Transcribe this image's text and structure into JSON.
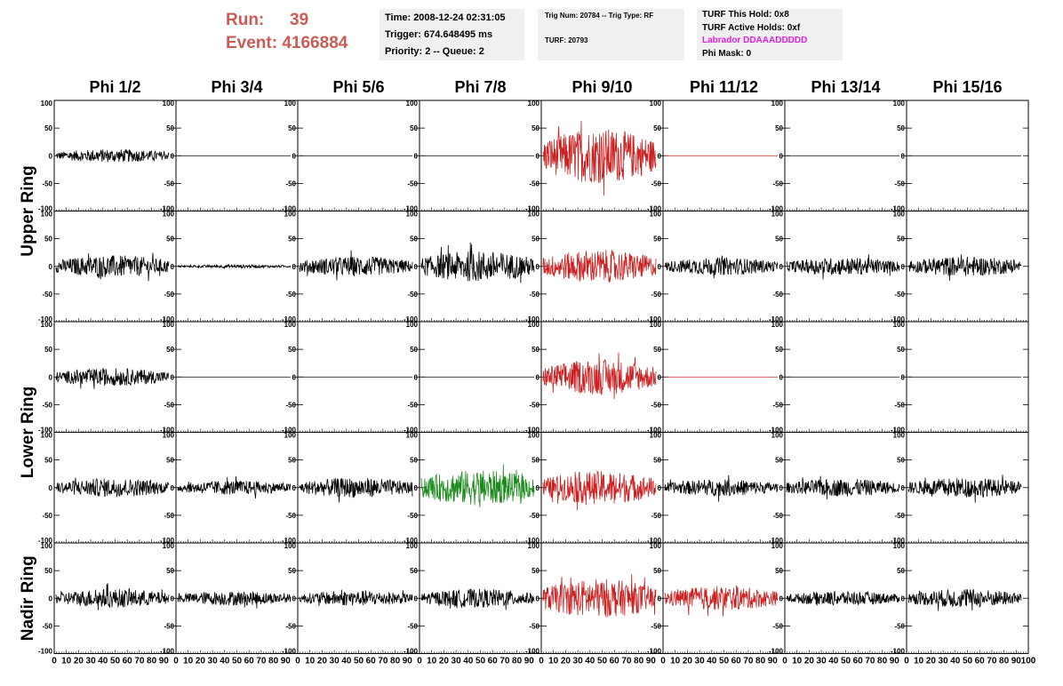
{
  "header": {
    "run_label": "Run:",
    "run_value": "39",
    "event_label": "Event:",
    "event_value": "4166884",
    "time": "Time: 2008-12-24 02:31:05",
    "trigger": "Trigger: 674.648495 ms",
    "priority": "Priority: 2 -- Queue: 2",
    "trig_num": "Trig Num: 20784 -- Trig Type: RF",
    "turf": "TURF: 20793",
    "turf_hold": "TURF This Hold: 0x8",
    "turf_active": "TURF Active Holds: 0xf",
    "labrador": "Labrador DDAAADDDDD",
    "phi_mask": "Phi Mask: 0"
  },
  "colors": {
    "header_red": "#cc5a55",
    "labrador_magenta": "#e020e0",
    "black": "#000000",
    "red": "#cc2020",
    "green": "#1a8a1a",
    "info_bg": "#f0f0f0"
  },
  "chart_data": {
    "type": "line",
    "columns": [
      "Phi 1/2",
      "Phi 3/4",
      "Phi 5/6",
      "Phi 7/8",
      "Phi 9/10",
      "Phi 11/12",
      "Phi 13/14",
      "Phi 15/16"
    ],
    "row_labels": [
      "Upper Ring",
      "Lower Ring",
      "Nadir Ring"
    ],
    "xlim": [
      0,
      100
    ],
    "ylim": [
      -100,
      100
    ],
    "xticks": [
      0,
      10,
      20,
      30,
      40,
      50,
      60,
      70,
      80,
      90,
      100
    ],
    "yticks": [
      -100,
      -50,
      0,
      50,
      100
    ],
    "rows": [
      {
        "ring": "Upper Ring",
        "colors": [
          "black",
          "black",
          "black",
          "black",
          "red",
          "red",
          "black",
          "black"
        ],
        "amplitude": [
          12,
          0,
          0,
          0,
          50,
          0,
          0,
          0
        ]
      },
      {
        "ring": "Upper Ring",
        "colors": [
          "black",
          "black",
          "black",
          "black",
          "red",
          "black",
          "black",
          "black"
        ],
        "amplitude": [
          20,
          3,
          18,
          28,
          30,
          16,
          16,
          18
        ]
      },
      {
        "ring": "Lower Ring",
        "colors": [
          "black",
          "black",
          "black",
          "black",
          "red",
          "red",
          "black",
          "black"
        ],
        "amplitude": [
          16,
          0,
          0,
          0,
          32,
          0,
          0,
          0
        ]
      },
      {
        "ring": "Lower Ring",
        "colors": [
          "black",
          "black",
          "black",
          "green",
          "red",
          "black",
          "black",
          "black"
        ],
        "amplitude": [
          17,
          13,
          18,
          32,
          30,
          15,
          16,
          18
        ]
      },
      {
        "ring": "Nadir Ring",
        "colors": [
          "black",
          "black",
          "black",
          "black",
          "red",
          "red",
          "black",
          "black"
        ],
        "amplitude": [
          17,
          13,
          14,
          17,
          35,
          22,
          13,
          17
        ]
      }
    ]
  }
}
